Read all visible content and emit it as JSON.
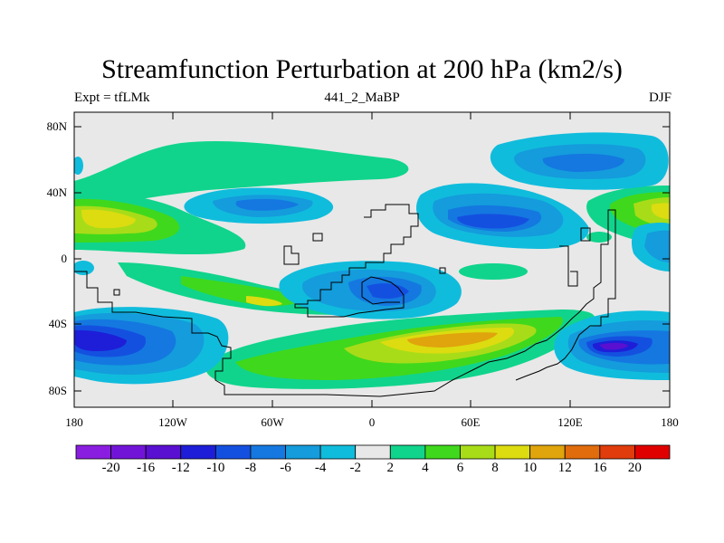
{
  "title": "Streamfunction Perturbation at 200 hPa (km2/s)",
  "subtitle_left": "Expt = tfLMk",
  "subtitle_center": "441_2_MaBP",
  "subtitle_right": "DJF",
  "map": {
    "projection": "cylindrical equidistant",
    "lon_range": [
      -180,
      180
    ],
    "lat_range": [
      -90,
      90
    ],
    "lat_labels": [
      "80N",
      "40N",
      "0",
      "40S",
      "80S"
    ],
    "lon_labels": [
      "180",
      "120W",
      "60W",
      "0",
      "60E",
      "120E",
      "180"
    ],
    "background_color": "#e8e8e8",
    "coastline_color": "#000000"
  },
  "colorbar": {
    "labels": [
      "-20",
      "-16",
      "-12",
      "-10",
      "-8",
      "-6",
      "-4",
      "-2",
      "2",
      "4",
      "6",
      "8",
      "10",
      "12",
      "16",
      "20"
    ],
    "colors": [
      "#8a1ee0",
      "#7214d8",
      "#5a10d0",
      "#1e1ed8",
      "#1450e0",
      "#1478e0",
      "#149cdc",
      "#10bcdc",
      "#e8e8e8",
      "#10d48c",
      "#40d81c",
      "#a8dc18",
      "#dcdc10",
      "#e0a40c",
      "#e06c0c",
      "#e03c0c",
      "#e00000"
    ]
  }
}
